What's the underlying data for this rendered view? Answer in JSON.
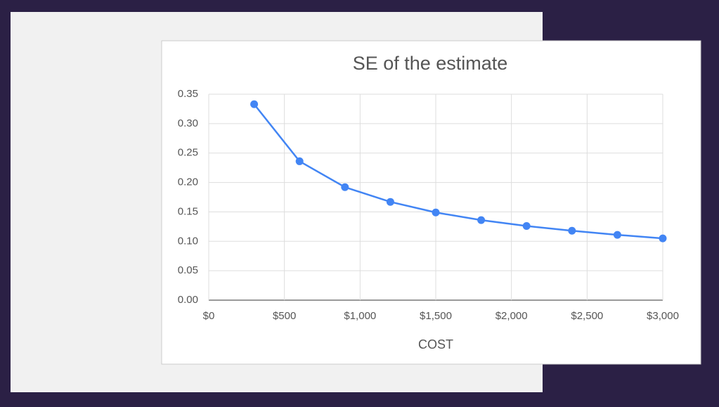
{
  "chart_data": {
    "type": "line",
    "title": "SE of the estimate",
    "x_label": "COST",
    "x": [
      300,
      600,
      900,
      1200,
      1500,
      1800,
      2100,
      2400,
      2700,
      3000
    ],
    "series": [
      {
        "name": "SE",
        "color": "#4285f4",
        "values": [
          0.333,
          0.236,
          0.192,
          0.167,
          0.149,
          0.136,
          0.126,
          0.118,
          0.111,
          0.105
        ]
      }
    ],
    "xlim": [
      0,
      3000
    ],
    "xticks": [
      {
        "value": 0,
        "label": "$0"
      },
      {
        "value": 500,
        "label": "$500"
      },
      {
        "value": 1000,
        "label": "$1,000"
      },
      {
        "value": 1500,
        "label": "$1,500"
      },
      {
        "value": 2000,
        "label": "$2,000"
      },
      {
        "value": 2500,
        "label": "$2,500"
      },
      {
        "value": 3000,
        "label": "$3,000"
      }
    ],
    "ylim": [
      0,
      0.35
    ],
    "yticks": [
      {
        "value": 0,
        "label": "0.00"
      },
      0.05,
      {
        "value": 0.1,
        "label": "0.10"
      },
      0.15,
      {
        "value": 0.2,
        "label": "0.20"
      },
      0.25,
      {
        "value": 0.3,
        "label": "0.30"
      },
      0.35
    ],
    "grid": true
  }
}
